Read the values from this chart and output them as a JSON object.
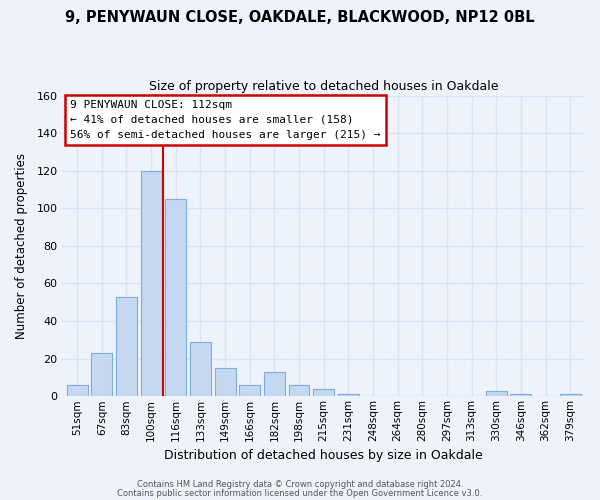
{
  "title1": "9, PENYWAUN CLOSE, OAKDALE, BLACKWOOD, NP12 0BL",
  "title2": "Size of property relative to detached houses in Oakdale",
  "xlabel": "Distribution of detached houses by size in Oakdale",
  "ylabel": "Number of detached properties",
  "bar_labels": [
    "51sqm",
    "67sqm",
    "83sqm",
    "100sqm",
    "116sqm",
    "133sqm",
    "149sqm",
    "166sqm",
    "182sqm",
    "198sqm",
    "215sqm",
    "231sqm",
    "248sqm",
    "264sqm",
    "280sqm",
    "297sqm",
    "313sqm",
    "330sqm",
    "346sqm",
    "362sqm",
    "379sqm"
  ],
  "bar_heights": [
    6,
    23,
    53,
    120,
    105,
    29,
    15,
    6,
    13,
    6,
    4,
    1,
    0,
    0,
    0,
    0,
    0,
    3,
    1,
    0,
    1
  ],
  "bar_color": "#c5d8f0",
  "bar_edge_color": "#7aade0",
  "vline_color": "#cc0000",
  "vline_x": 3.5,
  "ylim": [
    0,
    160
  ],
  "yticks": [
    0,
    20,
    40,
    60,
    80,
    100,
    120,
    140,
    160
  ],
  "annotation_text1": "9 PENYWAUN CLOSE: 112sqm",
  "annotation_text2": "← 41% of detached houses are smaller (158)",
  "annotation_text3": "56% of semi-detached houses are larger (215) →",
  "footer1": "Contains HM Land Registry data © Crown copyright and database right 2024.",
  "footer2": "Contains public sector information licensed under the Open Government Licence v3.0.",
  "background_color": "#eef2fa",
  "grid_color": "#d8e4f5",
  "box_edge_color": "#cc0000"
}
